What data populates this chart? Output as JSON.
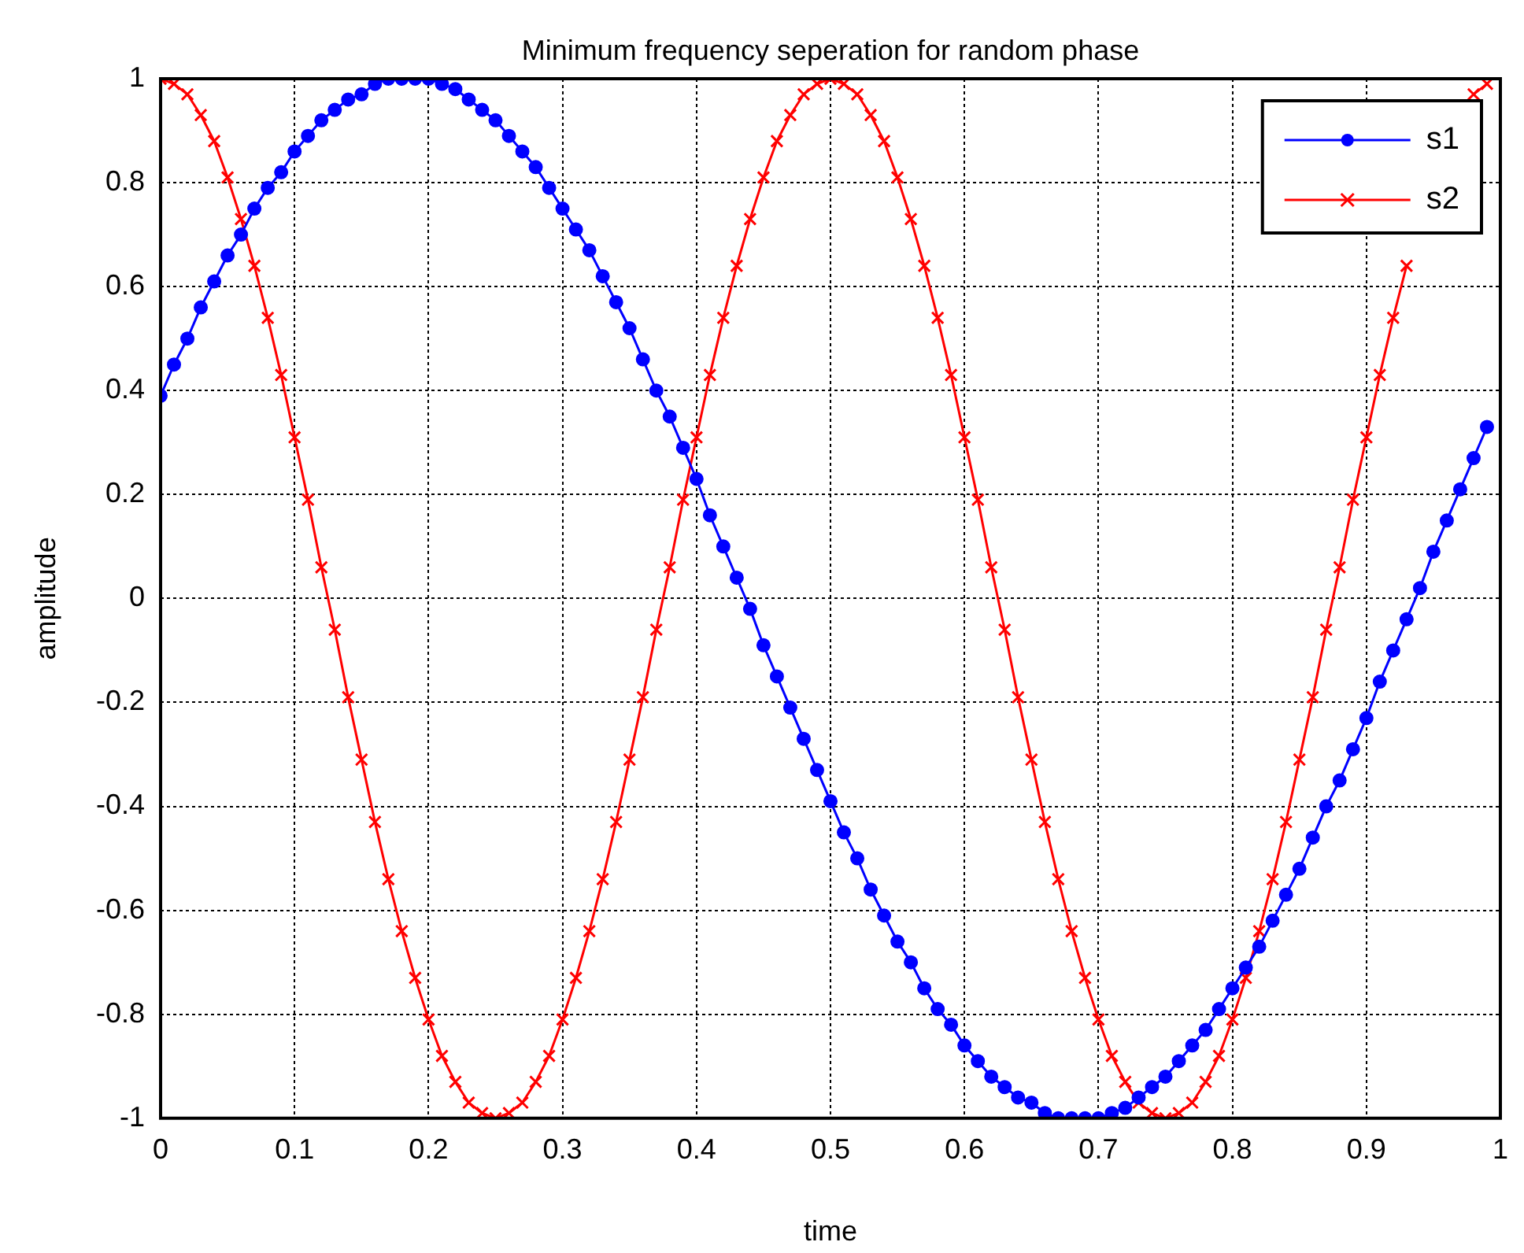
{
  "chart_data": {
    "type": "line",
    "title": "Minimum frequency seperation for random phase",
    "xlabel": "time",
    "ylabel": "amplitude",
    "x": [
      0,
      0.01,
      0.02,
      0.03,
      0.04,
      0.05,
      0.06,
      0.07,
      0.08,
      0.09,
      0.1,
      0.11,
      0.12,
      0.13,
      0.14,
      0.15,
      0.16,
      0.17,
      0.18,
      0.19,
      0.2,
      0.21,
      0.22,
      0.23,
      0.24,
      0.25,
      0.26,
      0.27,
      0.28,
      0.29,
      0.3,
      0.31,
      0.32,
      0.33,
      0.34,
      0.35,
      0.36,
      0.37,
      0.38,
      0.39,
      0.4,
      0.41,
      0.42,
      0.43,
      0.44,
      0.45,
      0.46,
      0.47,
      0.48,
      0.49,
      0.5,
      0.51,
      0.52,
      0.53,
      0.54,
      0.55,
      0.56,
      0.57,
      0.58,
      0.59,
      0.6,
      0.61,
      0.62,
      0.63,
      0.64,
      0.65,
      0.66,
      0.67,
      0.68,
      0.69,
      0.7,
      0.71,
      0.72,
      0.73,
      0.74,
      0.75,
      0.76,
      0.77,
      0.78,
      0.79,
      0.8,
      0.81,
      0.82,
      0.83,
      0.84,
      0.85,
      0.86,
      0.87,
      0.88,
      0.89,
      0.9,
      0.91,
      0.92,
      0.93,
      0.94,
      0.95,
      0.96,
      0.97,
      0.98,
      0.99
    ],
    "series": [
      {
        "name": "s1",
        "color": "#0000ff",
        "marker": "circle",
        "values": [
          0.39,
          0.45,
          0.5,
          0.56,
          0.61,
          0.66,
          0.7,
          0.75,
          0.79,
          0.82,
          0.86,
          0.89,
          0.92,
          0.94,
          0.96,
          0.97,
          0.99,
          1,
          1,
          1,
          1,
          0.99,
          0.98,
          0.96,
          0.94,
          0.92,
          0.89,
          0.86,
          0.83,
          0.79,
          0.75,
          0.71,
          0.67,
          0.62,
          0.57,
          0.52,
          0.46,
          0.4,
          0.35,
          0.29,
          0.23,
          0.16,
          0.1,
          0.04,
          -0.02,
          -0.09,
          -0.15,
          -0.21,
          -0.27,
          -0.33,
          -0.39,
          -0.45,
          -0.5,
          -0.56,
          -0.61,
          -0.66,
          -0.7,
          -0.75,
          -0.79,
          -0.82,
          -0.86,
          -0.89,
          -0.92,
          -0.94,
          -0.96,
          -0.97,
          -0.99,
          -1,
          -1,
          -1,
          -1,
          -0.99,
          -0.98,
          -0.96,
          -0.94,
          -0.92,
          -0.89,
          -0.86,
          -0.83,
          -0.79,
          -0.75,
          -0.71,
          -0.67,
          -0.62,
          -0.57,
          -0.52,
          -0.46,
          -0.4,
          -0.35,
          -0.29,
          -0.23,
          -0.16,
          -0.1,
          -0.04,
          0.02,
          0.09,
          0.15,
          0.21,
          0.27,
          0.33
        ]
      },
      {
        "name": "s2",
        "color": "#ff0000",
        "marker": "cross",
        "values": [
          1,
          0.99,
          0.97,
          0.93,
          0.88,
          0.81,
          0.73,
          0.64,
          0.54,
          0.43,
          0.31,
          0.19,
          0.06,
          -0.06,
          -0.19,
          -0.31,
          -0.43,
          -0.54,
          -0.64,
          -0.73,
          -0.81,
          -0.88,
          -0.93,
          -0.97,
          -0.99,
          -1,
          -0.99,
          -0.97,
          -0.93,
          -0.88,
          -0.81,
          -0.73,
          -0.64,
          -0.54,
          -0.43,
          -0.31,
          -0.19,
          -0.06,
          0.06,
          0.19,
          0.31,
          0.43,
          0.54,
          0.64,
          0.73,
          0.81,
          0.88,
          0.93,
          0.97,
          0.99,
          1,
          0.99,
          0.97,
          0.93,
          0.88,
          0.81,
          0.73,
          0.64,
          0.54,
          0.43,
          0.31,
          0.19,
          0.06,
          -0.06,
          -0.19,
          -0.31,
          -0.43,
          -0.54,
          -0.64,
          -0.73,
          -0.81,
          -0.88,
          -0.93,
          -0.97,
          -0.99,
          -1,
          -0.99,
          -0.97,
          -0.93,
          -0.88,
          -0.81,
          -0.73,
          -0.64,
          -0.54,
          -0.43,
          -0.31,
          -0.19,
          -0.06,
          0.06,
          0.19,
          0.31,
          0.43,
          0.54,
          0.64,
          null,
          null,
          null,
          null,
          0.97,
          0.99
        ]
      }
    ],
    "xlim": [
      0,
      1
    ],
    "xticks": [
      0,
      0.1,
      0.2,
      0.3,
      0.4,
      0.5,
      0.6,
      0.7,
      0.8,
      0.9,
      1
    ],
    "ylim": [
      -1,
      1
    ],
    "yticks": [
      -1,
      -0.8,
      -0.6,
      -0.4,
      -0.2,
      0,
      0.2,
      0.4,
      0.6,
      0.8,
      1
    ],
    "grid": true,
    "legend": "top right",
    "line_style": "solid"
  }
}
